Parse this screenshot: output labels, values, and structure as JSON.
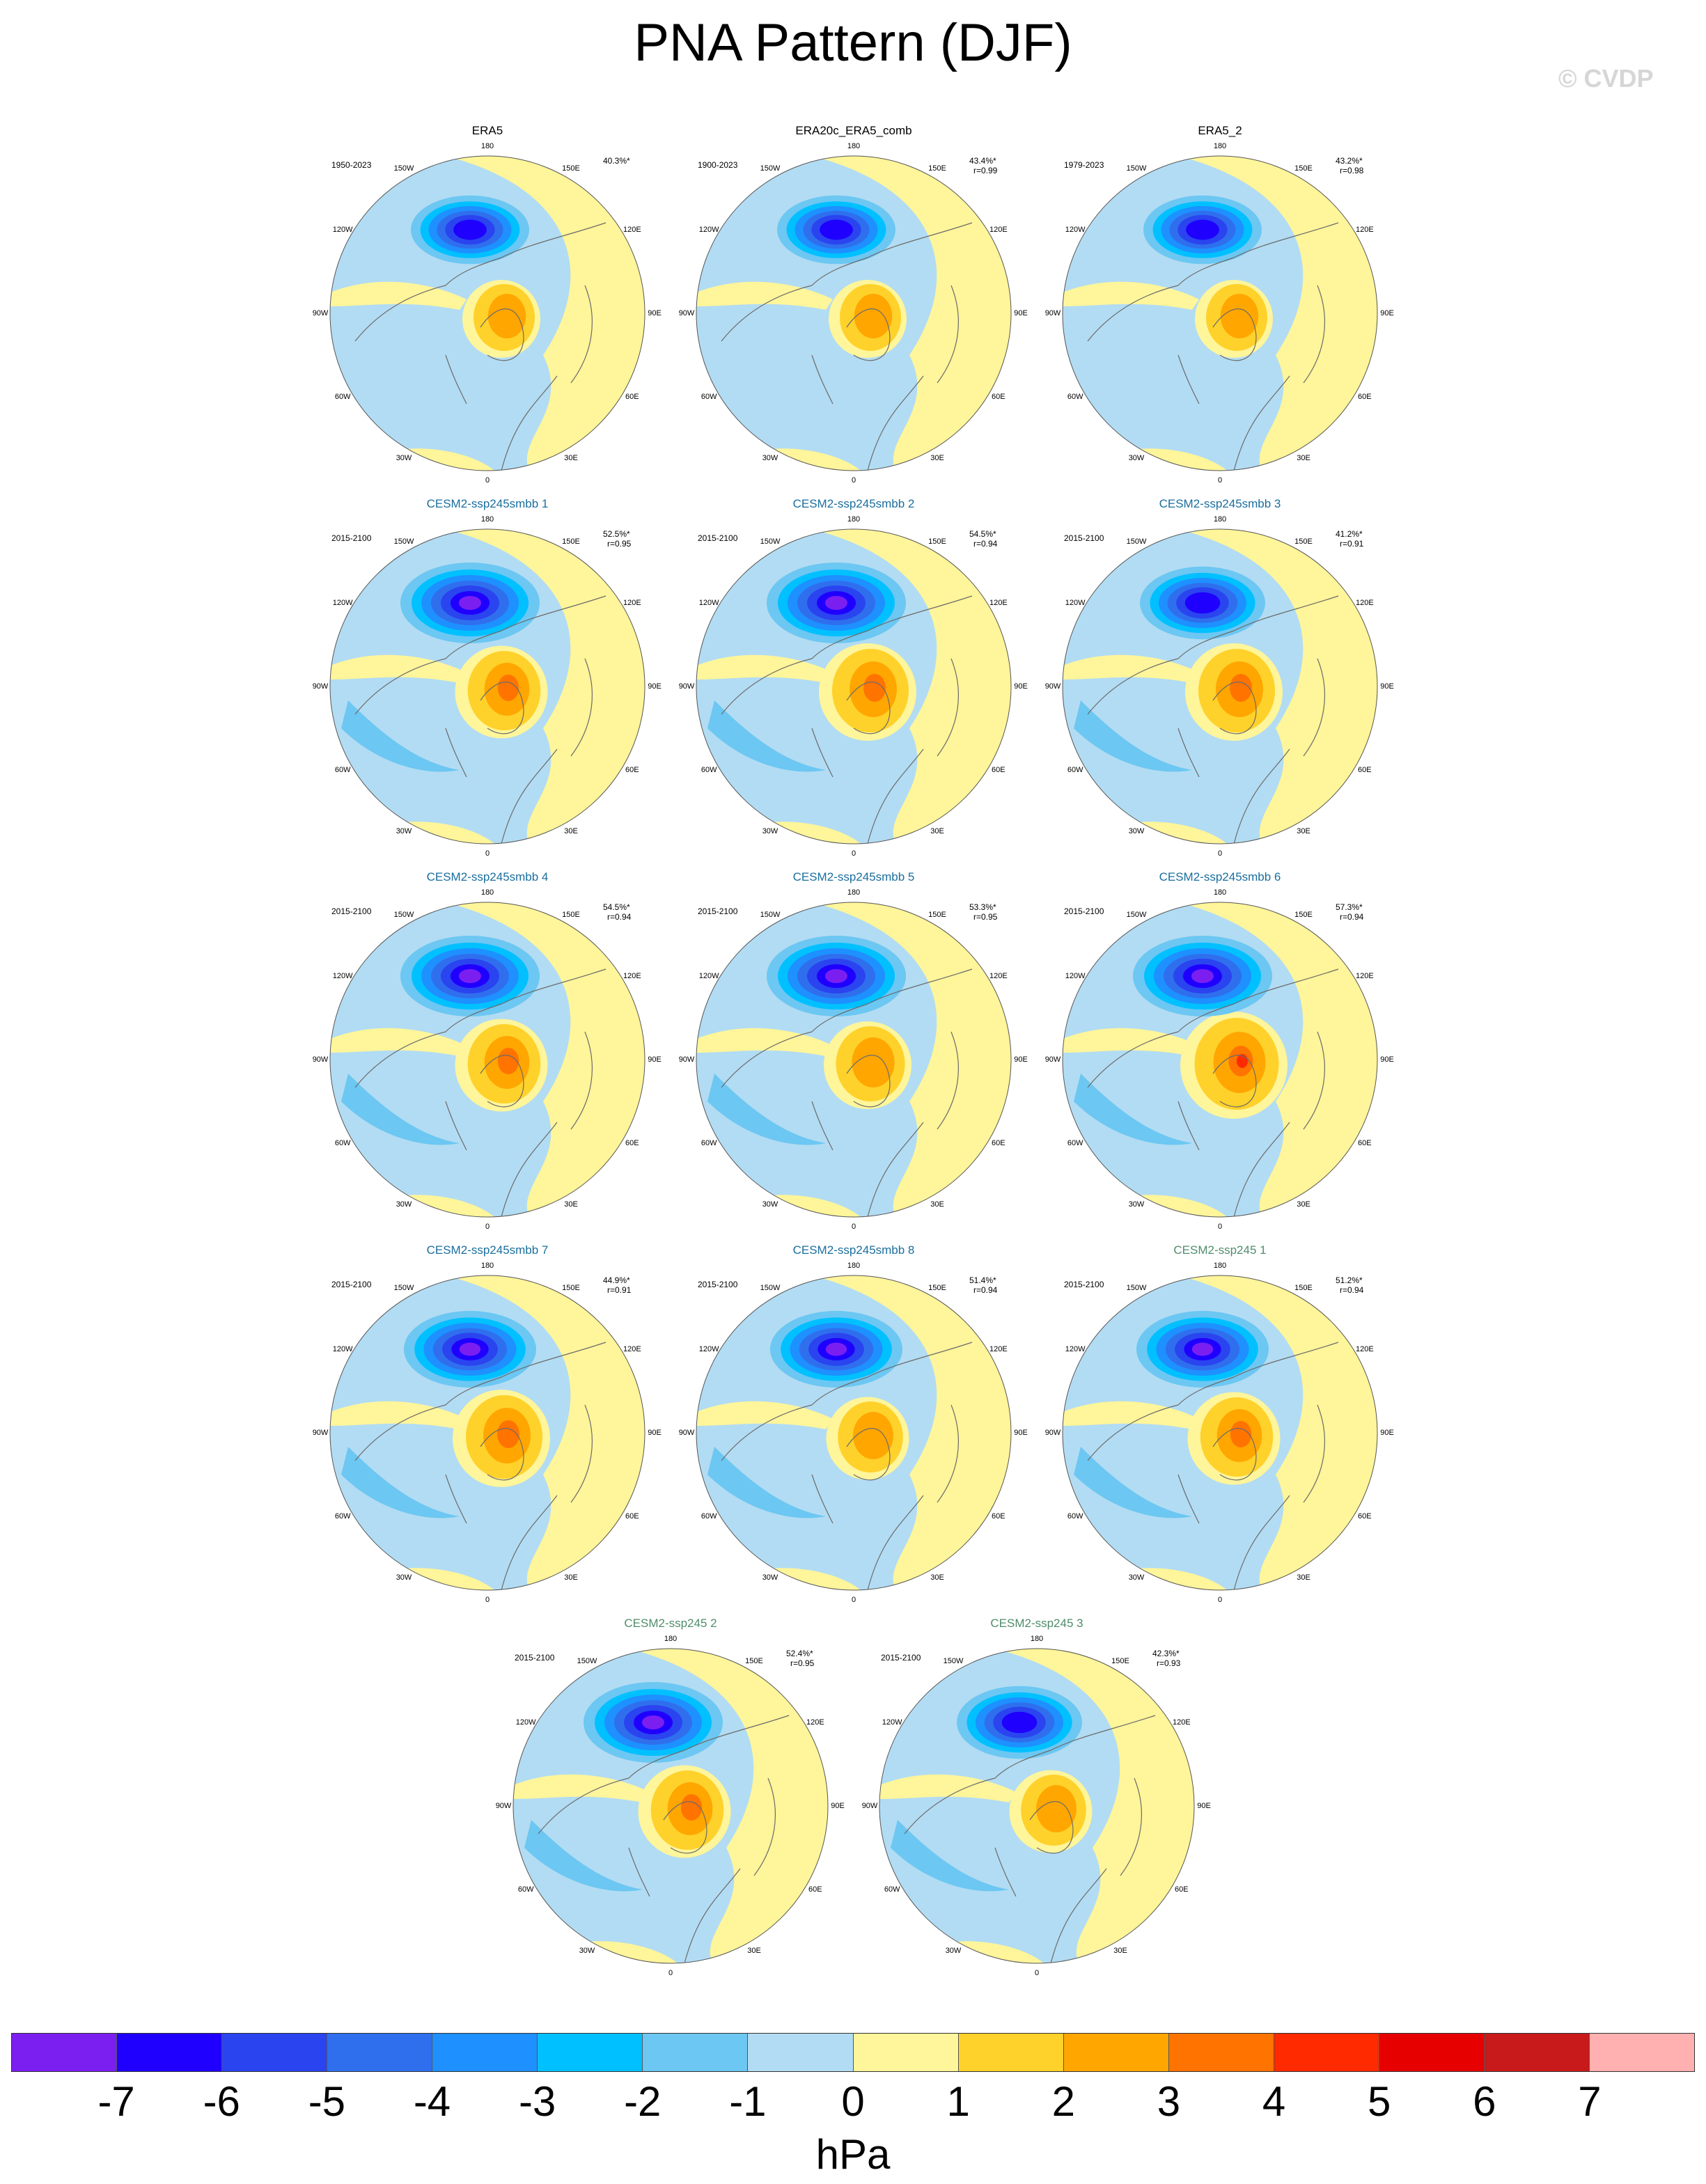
{
  "title": "PNA Pattern (DJF)",
  "watermark": "© CVDP",
  "units": "hPa",
  "colors": {
    "ocean": "#b2dcf3",
    "land_contour": "#6b6b6b",
    "reference_title": "#000000",
    "smbb_title": "#1a6e9e",
    "ssp245_title": "#4f8d6a"
  },
  "colorbar": {
    "labels": [
      "-7",
      "-6",
      "-5",
      "-4",
      "-3",
      "-2",
      "-1",
      "0",
      "1",
      "2",
      "3",
      "4",
      "5",
      "6",
      "7"
    ],
    "colors": [
      "#7b1ff0",
      "#1f00ff",
      "#2a44ef",
      "#2f6fee",
      "#1e90ff",
      "#00c0ff",
      "#6cc7f2",
      "#b2dcf3",
      "#fff59a",
      "#ffd12b",
      "#ffa600",
      "#ff7300",
      "#ff2a00",
      "#e60000",
      "#c81a1a",
      "#ffb0b0"
    ]
  },
  "lon_labels": {
    "top": "180",
    "bottom": "0",
    "upper_left": "150W",
    "upper_right": "150E",
    "mid_upper_left": "120W",
    "mid_upper_right": "120E",
    "left": "90W",
    "right": "90E",
    "mid_lower_left": "60W",
    "mid_lower_right": "60E",
    "lower_left": "30W",
    "lower_right": "30E"
  },
  "panels": [
    {
      "title": "ERA5",
      "years": "1950-2023",
      "pct": "40.3%*",
      "r": "",
      "kind": "reference",
      "neg": 0.85,
      "pos": 0.8
    },
    {
      "title": "ERA20c_ERA5_comb",
      "years": "1900-2023",
      "pct": "43.4%*",
      "r": "r=0.99",
      "kind": "reference",
      "neg": 0.85,
      "pos": 0.8
    },
    {
      "title": "ERA5_2",
      "years": "1979-2023",
      "pct": "43.2%*",
      "r": "r=0.98",
      "kind": "reference",
      "neg": 0.85,
      "pos": 0.8
    },
    {
      "title": "CESM2-ssp245smbb 1",
      "years": "2015-2100",
      "pct": "52.5%*",
      "r": "r=0.95",
      "kind": "smbb",
      "neg": 1.0,
      "pos": 0.95
    },
    {
      "title": "CESM2-ssp245smbb 2",
      "years": "2015-2100",
      "pct": "54.5%*",
      "r": "r=0.94",
      "kind": "smbb",
      "neg": 1.0,
      "pos": 1.0
    },
    {
      "title": "CESM2-ssp245smbb 3",
      "years": "2015-2100",
      "pct": "41.2%*",
      "r": "r=0.91",
      "kind": "smbb",
      "neg": 0.9,
      "pos": 1.0
    },
    {
      "title": "CESM2-ssp245smbb 4",
      "years": "2015-2100",
      "pct": "54.5%*",
      "r": "r=0.94",
      "kind": "smbb",
      "neg": 1.0,
      "pos": 0.95
    },
    {
      "title": "CESM2-ssp245smbb 5",
      "years": "2015-2100",
      "pct": "53.3%*",
      "r": "r=0.95",
      "kind": "smbb",
      "neg": 1.0,
      "pos": 0.9
    },
    {
      "title": "CESM2-ssp245smbb 6",
      "years": "2015-2100",
      "pct": "57.3%*",
      "r": "r=0.94",
      "kind": "smbb",
      "neg": 1.0,
      "pos": 1.1
    },
    {
      "title": "CESM2-ssp245smbb 7",
      "years": "2015-2100",
      "pct": "44.9%*",
      "r": "r=0.91",
      "kind": "smbb",
      "neg": 0.95,
      "pos": 1.0
    },
    {
      "title": "CESM2-ssp245smbb 8",
      "years": "2015-2100",
      "pct": "51.4%*",
      "r": "r=0.94",
      "kind": "smbb",
      "neg": 0.95,
      "pos": 0.85
    },
    {
      "title": "CESM2-ssp245 1",
      "years": "2015-2100",
      "pct": "51.2%*",
      "r": "r=0.94",
      "kind": "ssp245",
      "neg": 0.95,
      "pos": 0.95
    },
    {
      "title": "CESM2-ssp245 2",
      "years": "2015-2100",
      "pct": "52.4%*",
      "r": "r=0.95",
      "kind": "ssp245",
      "neg": 1.0,
      "pos": 0.95
    },
    {
      "title": "CESM2-ssp245 3",
      "years": "2015-2100",
      "pct": "42.3%*",
      "r": "r=0.93",
      "kind": "ssp245",
      "neg": 0.9,
      "pos": 0.85
    }
  ]
}
